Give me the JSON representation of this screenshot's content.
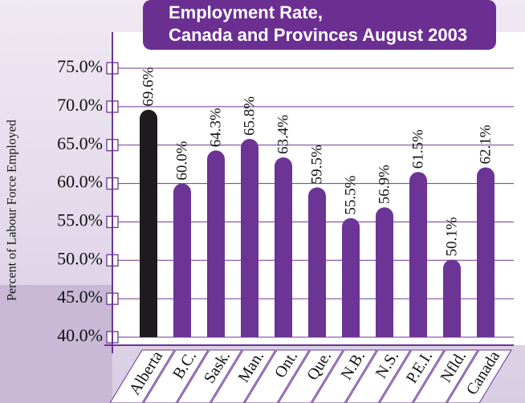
{
  "chart_data": {
    "type": "bar",
    "title": [
      "Employment Rate,",
      "Canada and Provinces August 2003"
    ],
    "y_label": "Percent of Labour Force Employed",
    "categories": [
      "Alberta",
      "B.C.",
      "Sask.",
      "Man.",
      "Ont.",
      "Que.",
      "N.B.",
      "N.S.",
      "P.E.I.",
      "Nfld.",
      "Canada"
    ],
    "values": [
      69.6,
      60.0,
      64.3,
      65.8,
      63.4,
      59.5,
      55.5,
      56.9,
      61.5,
      50.1,
      62.1
    ],
    "value_labels": [
      "69.6%",
      "60.0%",
      "64.3%",
      "65.8%",
      "63.4%",
      "59.5%",
      "55.5%",
      "56.9%",
      "61.5%",
      "50.1%",
      "62.1%"
    ],
    "colors": [
      "#1e1a1e",
      "#6b3495",
      "#6b3495",
      "#6b3495",
      "#6b3495",
      "#6b3495",
      "#6b3495",
      "#6b3495",
      "#6b3495",
      "#6b3495",
      "#6b3495"
    ],
    "ylim": [
      40,
      75
    ],
    "yticks": [
      {
        "value": 40,
        "label": "40.0%"
      },
      {
        "value": 45,
        "label": "45.0%"
      },
      {
        "value": 50,
        "label": "50.0%"
      },
      {
        "value": 55,
        "label": "55.0%"
      },
      {
        "value": 60,
        "label": "60.0%"
      },
      {
        "value": 65,
        "label": "65.0%"
      },
      {
        "value": 70,
        "label": "70.0%"
      },
      {
        "value": 75,
        "label": "75.0%"
      }
    ],
    "grid": true
  }
}
